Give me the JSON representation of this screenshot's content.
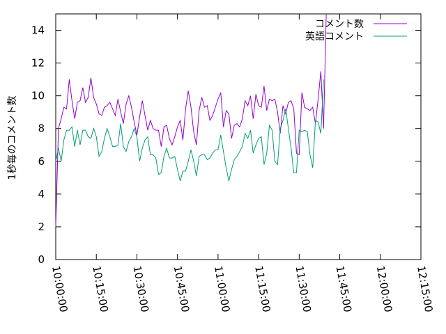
{
  "chart_data": {
    "type": "line",
    "title": "",
    "xlabel": "",
    "ylabel": "1秒毎のコメント数",
    "ylim": [
      0,
      15
    ],
    "yticks": [
      0,
      2,
      4,
      6,
      8,
      10,
      12,
      14
    ],
    "xlim": [
      "10:00:00",
      "12:15:00"
    ],
    "xticks": [
      "10:00:00",
      "10:15:00",
      "10:30:00",
      "10:45:00",
      "11:00:00",
      "11:15:00",
      "11:30:00",
      "11:45:00",
      "12:00:00",
      "12:15:00"
    ],
    "sample_interval_seconds": 60,
    "grid": false,
    "legend_position": "top-right",
    "series": [
      {
        "name": "コメント数",
        "color": "#9400d3",
        "values": [
          2.0,
          8.0,
          8.6,
          9.3,
          9.2,
          11.0,
          9.7,
          8.6,
          9.6,
          9.7,
          10.5,
          9.6,
          9.9,
          11.1,
          9.9,
          9.5,
          8.9,
          8.8,
          9.3,
          9.4,
          9.6,
          9.2,
          8.8,
          9.8,
          9.0,
          8.3,
          9.5,
          10.0,
          9.3,
          8.4,
          7.6,
          8.7,
          9.7,
          8.8,
          7.9,
          8.5,
          8.0,
          7.9,
          7.9,
          6.9,
          8.1,
          8.2,
          7.4,
          7.0,
          7.5,
          8.1,
          8.5,
          7.3,
          9.2,
          10.3,
          9.3,
          7.8,
          7.0,
          9.1,
          9.9,
          9.3,
          9.4,
          8.5,
          8.8,
          9.3,
          9.8,
          10.2,
          8.1,
          9.1,
          8.9,
          7.4,
          8.2,
          8.3,
          8.1,
          8.6,
          9.7,
          9.4,
          10.0,
          8.6,
          10.1,
          9.4,
          9.3,
          10.6,
          9.1,
          9.8,
          9.7,
          9.8,
          9.0,
          7.7,
          9.4,
          8.9,
          9.6,
          9.7,
          9.2,
          6.5,
          6.4,
          10.2,
          9.3,
          9.2,
          9.1,
          9.3,
          8.3,
          9.8,
          11.5,
          8.0,
          15.0
        ]
      },
      {
        "name": "英語コメント",
        "color": "#009e73",
        "values": [
          6.0,
          6.8,
          6.0,
          7.3,
          7.9,
          7.9,
          8.1,
          6.9,
          7.9,
          7.0,
          7.9,
          7.9,
          7.5,
          7.4,
          8.0,
          7.5,
          6.3,
          6.6,
          7.4,
          8.0,
          7.5,
          6.9,
          6.9,
          7.0,
          8.3,
          6.9,
          6.6,
          7.2,
          7.5,
          8.0,
          7.5,
          6.0,
          6.8,
          7.3,
          7.5,
          6.4,
          6.4,
          6.2,
          5.2,
          5.3,
          6.3,
          6.8,
          6.2,
          6.2,
          6.3,
          5.5,
          4.8,
          5.4,
          5.4,
          6.0,
          6.7,
          6.0,
          5.1,
          6.3,
          6.4,
          6.4,
          6.1,
          6.2,
          6.5,
          6.7,
          6.7,
          7.6,
          6.6,
          5.6,
          4.8,
          5.5,
          6.1,
          6.3,
          6.6,
          6.9,
          7.7,
          7.4,
          7.9,
          6.5,
          7.0,
          7.4,
          7.5,
          5.8,
          6.5,
          8.2,
          7.9,
          6.0,
          5.8,
          8.0,
          8.5,
          9.2,
          8.0,
          6.8,
          5.3,
          5.3,
          7.9,
          7.8,
          7.9,
          7.8,
          6.4,
          5.6,
          8.5,
          8.4,
          7.7,
          11.0
        ]
      }
    ]
  }
}
